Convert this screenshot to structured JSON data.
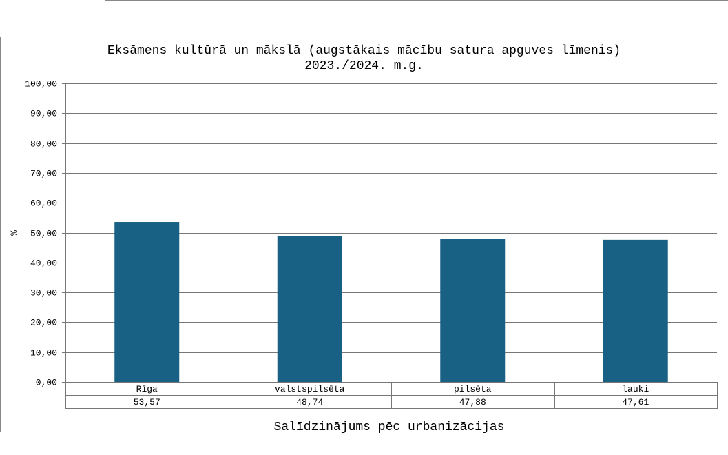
{
  "chart_data": {
    "type": "bar",
    "title": "Eksāmens kultūrā un mākslā (augstākais mācību satura apguves līmenis)",
    "subtitle": "2023./2024. m.g.",
    "xlabel": "Salīdzinājums pēc urbanizācijas",
    "ylabel": "%",
    "categories": [
      "Rīga",
      "valstspilsēta",
      "pilsēta",
      "lauki"
    ],
    "values": [
      53.57,
      48.74,
      47.88,
      47.61
    ],
    "value_labels": [
      "53,57",
      "48,74",
      "47,88",
      "47,61"
    ],
    "ylim": [
      0,
      100
    ],
    "yticks": [
      "0,00",
      "10,00",
      "20,00",
      "30,00",
      "40,00",
      "50,00",
      "60,00",
      "70,00",
      "80,00",
      "90,00",
      "100,00"
    ],
    "grid": true,
    "legend": "none",
    "bar_color": "#186184",
    "data_table": true
  }
}
